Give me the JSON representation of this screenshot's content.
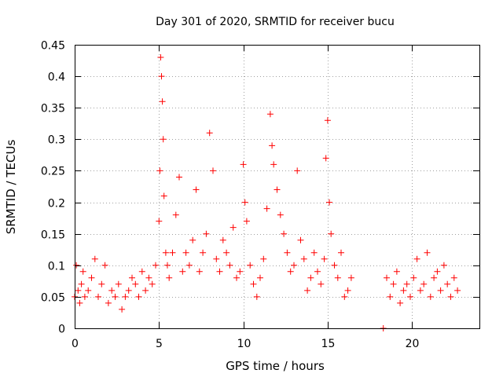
{
  "chart_data": {
    "type": "scatter",
    "title": "Day 301 of 2020, SRMTID for receiver bucu",
    "xlabel": "GPS time / hours",
    "ylabel": "SRMTID / TECUs",
    "xlim": [
      0,
      24
    ],
    "ylim": [
      0,
      0.45
    ],
    "xticks": [
      0,
      5,
      10,
      15,
      20
    ],
    "xtick_labels": [
      "0",
      "5",
      "10",
      "15",
      "20"
    ],
    "yticks": [
      0,
      0.05,
      0.1,
      0.15,
      0.2,
      0.25,
      0.3,
      0.35,
      0.4,
      0.45
    ],
    "ytick_labels": [
      "0",
      "0.05",
      "0.1",
      "0.15",
      "0.2",
      "0.25",
      "0.3",
      "0.35",
      "0.4",
      "0.45"
    ],
    "grid": true,
    "marker": "plus",
    "color": "#ff0000",
    "series": [
      {
        "name": "SRMTID",
        "x": [
          0.0,
          0.1,
          0.2,
          0.3,
          0.4,
          0.5,
          0.6,
          0.8,
          1.0,
          1.2,
          1.4,
          1.6,
          1.8,
          2.0,
          2.2,
          2.4,
          2.6,
          2.8,
          3.0,
          3.2,
          3.4,
          3.6,
          3.8,
          4.0,
          4.2,
          4.4,
          4.6,
          4.8,
          5.0,
          5.05,
          5.1,
          5.15,
          5.2,
          5.25,
          5.3,
          5.4,
          5.5,
          5.6,
          5.8,
          6.0,
          6.2,
          6.4,
          6.6,
          6.8,
          7.0,
          7.2,
          7.4,
          7.6,
          7.8,
          8.0,
          8.2,
          8.4,
          8.6,
          8.8,
          9.0,
          9.2,
          9.4,
          9.6,
          9.8,
          10.0,
          10.1,
          10.2,
          10.4,
          10.6,
          10.8,
          11.0,
          11.2,
          11.4,
          11.6,
          11.7,
          11.8,
          12.0,
          12.2,
          12.4,
          12.6,
          12.8,
          13.0,
          13.2,
          13.4,
          13.6,
          13.8,
          14.0,
          14.2,
          14.4,
          14.6,
          14.8,
          14.9,
          15.0,
          15.1,
          15.2,
          15.4,
          15.6,
          15.8,
          16.0,
          16.2,
          16.4,
          18.3,
          18.5,
          18.7,
          18.9,
          19.1,
          19.3,
          19.5,
          19.7,
          19.9,
          20.1,
          20.3,
          20.5,
          20.7,
          20.9,
          21.1,
          21.3,
          21.5,
          21.7,
          21.9,
          22.1,
          22.3,
          22.5,
          22.7
        ],
        "y": [
          0.05,
          0.1,
          0.06,
          0.04,
          0.07,
          0.09,
          0.05,
          0.06,
          0.08,
          0.11,
          0.05,
          0.07,
          0.1,
          0.04,
          0.06,
          0.05,
          0.07,
          0.03,
          0.05,
          0.06,
          0.08,
          0.07,
          0.05,
          0.09,
          0.06,
          0.08,
          0.07,
          0.1,
          0.17,
          0.25,
          0.43,
          0.4,
          0.36,
          0.3,
          0.21,
          0.12,
          0.1,
          0.08,
          0.12,
          0.18,
          0.24,
          0.09,
          0.12,
          0.1,
          0.14,
          0.22,
          0.09,
          0.12,
          0.15,
          0.31,
          0.25,
          0.11,
          0.09,
          0.14,
          0.12,
          0.1,
          0.16,
          0.08,
          0.09,
          0.26,
          0.2,
          0.17,
          0.1,
          0.07,
          0.05,
          0.08,
          0.11,
          0.19,
          0.34,
          0.29,
          0.26,
          0.22,
          0.18,
          0.15,
          0.12,
          0.09,
          0.1,
          0.25,
          0.14,
          0.11,
          0.06,
          0.08,
          0.12,
          0.09,
          0.07,
          0.11,
          0.27,
          0.33,
          0.2,
          0.15,
          0.1,
          0.08,
          0.12,
          0.05,
          0.06,
          0.08,
          0.0,
          0.08,
          0.05,
          0.07,
          0.09,
          0.04,
          0.06,
          0.07,
          0.05,
          0.08,
          0.11,
          0.06,
          0.07,
          0.12,
          0.05,
          0.08,
          0.09,
          0.06,
          0.1,
          0.07,
          0.05,
          0.08,
          0.06
        ]
      }
    ]
  }
}
